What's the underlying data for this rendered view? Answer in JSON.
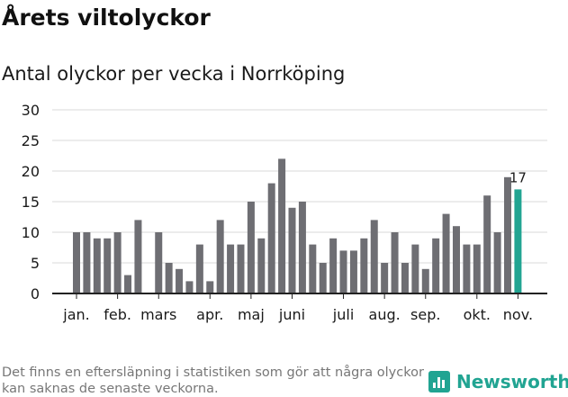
{
  "title": "Årets viltolyckor",
  "subtitle": "Antal olyckor per vecka i Norrköping",
  "note": "Det finns en eftersläpning i statistiken som gör att några olyckor kan saknas de senaste veckorna.",
  "brand": {
    "name": "Newsworthy",
    "icon": "bar-chart-icon"
  },
  "colors": {
    "bar": "#6e6e73",
    "highlight": "#21a492",
    "grid": "#d9d9d9",
    "axis": "#222222",
    "text": "#1a1a1a"
  },
  "chart_data": {
    "type": "bar",
    "ylim": [
      0,
      30
    ],
    "yticks": [
      0,
      5,
      10,
      15,
      20,
      25,
      30
    ],
    "grid": true,
    "values": [
      10,
      10,
      9,
      9,
      10,
      3,
      12,
      0,
      10,
      5,
      4,
      2,
      8,
      2,
      12,
      8,
      8,
      15,
      9,
      18,
      22,
      14,
      15,
      8,
      5,
      9,
      7,
      7,
      9,
      12,
      5,
      10,
      5,
      8,
      4,
      9,
      13,
      11,
      8,
      8,
      16,
      10,
      19,
      17
    ],
    "highlight_index": 43,
    "highlight_label": "17",
    "month_ticks": [
      {
        "label": "jan.",
        "week": 0
      },
      {
        "label": "feb.",
        "week": 4
      },
      {
        "label": "mars",
        "week": 8
      },
      {
        "label": "apr.",
        "week": 13
      },
      {
        "label": "maj",
        "week": 17
      },
      {
        "label": "juni",
        "week": 21
      },
      {
        "label": "juli",
        "week": 26
      },
      {
        "label": "aug.",
        "week": 30
      },
      {
        "label": "sep.",
        "week": 34
      },
      {
        "label": "okt.",
        "week": 39
      },
      {
        "label": "nov.",
        "week": 43
      }
    ]
  }
}
